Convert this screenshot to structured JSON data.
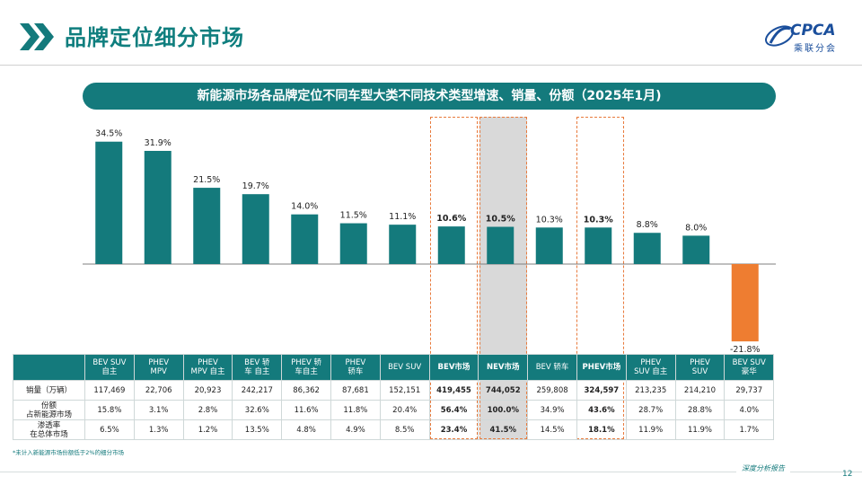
{
  "header": {
    "title": "品牌定位细分市场"
  },
  "logo": {
    "name": "CPCA",
    "sub": "乘联分会"
  },
  "banner": {
    "title": "新能源市场各品牌定位不同车型大类不同技术类型增速、销量、份额（2025年1月)"
  },
  "chart_data": {
    "type": "bar",
    "categories": [
      "BEV SUV自主",
      "PHEV MPV",
      "PHEV MPV自主",
      "BEV轿车自主",
      "PHEV轿车自主",
      "PHEV轿车",
      "BEV SUV",
      "BEV市场",
      "NEV市场",
      "BEV轿车",
      "PHEV市场",
      "PHEV SUV自主",
      "PHEV SUV",
      "BEV SUV豪华"
    ],
    "values": [
      34.5,
      31.9,
      21.5,
      19.7,
      14.0,
      11.5,
      11.1,
      10.6,
      10.5,
      10.3,
      10.3,
      8.8,
      8.0,
      -21.8
    ],
    "labels": [
      "34.5%",
      "31.9%",
      "21.5%",
      "19.7%",
      "14.0%",
      "11.5%",
      "11.1%",
      "10.6%",
      "10.5%",
      "10.3%",
      "10.3%",
      "8.8%",
      "8.0%",
      "-21.8%"
    ],
    "bold_labels": [
      7,
      8,
      10
    ],
    "ylim": [
      -23,
      36
    ],
    "colors": {
      "positive": "#147a7c",
      "negative": "#ee7d31",
      "highlight_box": "#e87a3c",
      "nev_shade": "#d9d9d9"
    }
  },
  "table": {
    "headers": [
      [
        "BEV SUV",
        "自主"
      ],
      [
        "PHEV",
        "MPV"
      ],
      [
        "PHEV",
        "MPV 自主"
      ],
      [
        "BEV 轿",
        "车 自主"
      ],
      [
        "PHEV 轿",
        "车自主"
      ],
      [
        "PHEV",
        "轿车"
      ],
      [
        "BEV SUV"
      ],
      [
        "BEV市场"
      ],
      [
        "NEV市场"
      ],
      [
        "BEV 轿车"
      ],
      [
        "PHEV市场"
      ],
      [
        "PHEV",
        "SUV 自主"
      ],
      [
        "PHEV",
        "SUV"
      ],
      [
        "BEV SUV",
        "豪华"
      ]
    ],
    "rows": [
      {
        "label": [
          "销量（万辆）"
        ],
        "values": [
          "117,469",
          "22,706",
          "20,923",
          "242,217",
          "86,362",
          "87,681",
          "152,151",
          "419,455",
          "744,052",
          "259,808",
          "324,597",
          "213,235",
          "214,210",
          "29,737"
        ]
      },
      {
        "label": [
          "份额",
          "占新能源市场"
        ],
        "values": [
          "15.8%",
          "3.1%",
          "2.8%",
          "32.6%",
          "11.6%",
          "11.8%",
          "20.4%",
          "56.4%",
          "100.0%",
          "34.9%",
          "43.6%",
          "28.7%",
          "28.8%",
          "4.0%"
        ]
      },
      {
        "label": [
          "渗透率",
          "在总体市场"
        ],
        "values": [
          "6.5%",
          "1.3%",
          "1.2%",
          "13.5%",
          "4.8%",
          "4.9%",
          "8.5%",
          "23.4%",
          "41.5%",
          "14.5%",
          "18.1%",
          "11.9%",
          "11.9%",
          "1.7%"
        ]
      }
    ],
    "bold_cols": [
      7,
      8,
      10
    ]
  },
  "footnote": "*未计入新能源市场份额低于2%的细分市场",
  "footer": {
    "tag": "深度分析报告",
    "page": "12"
  }
}
